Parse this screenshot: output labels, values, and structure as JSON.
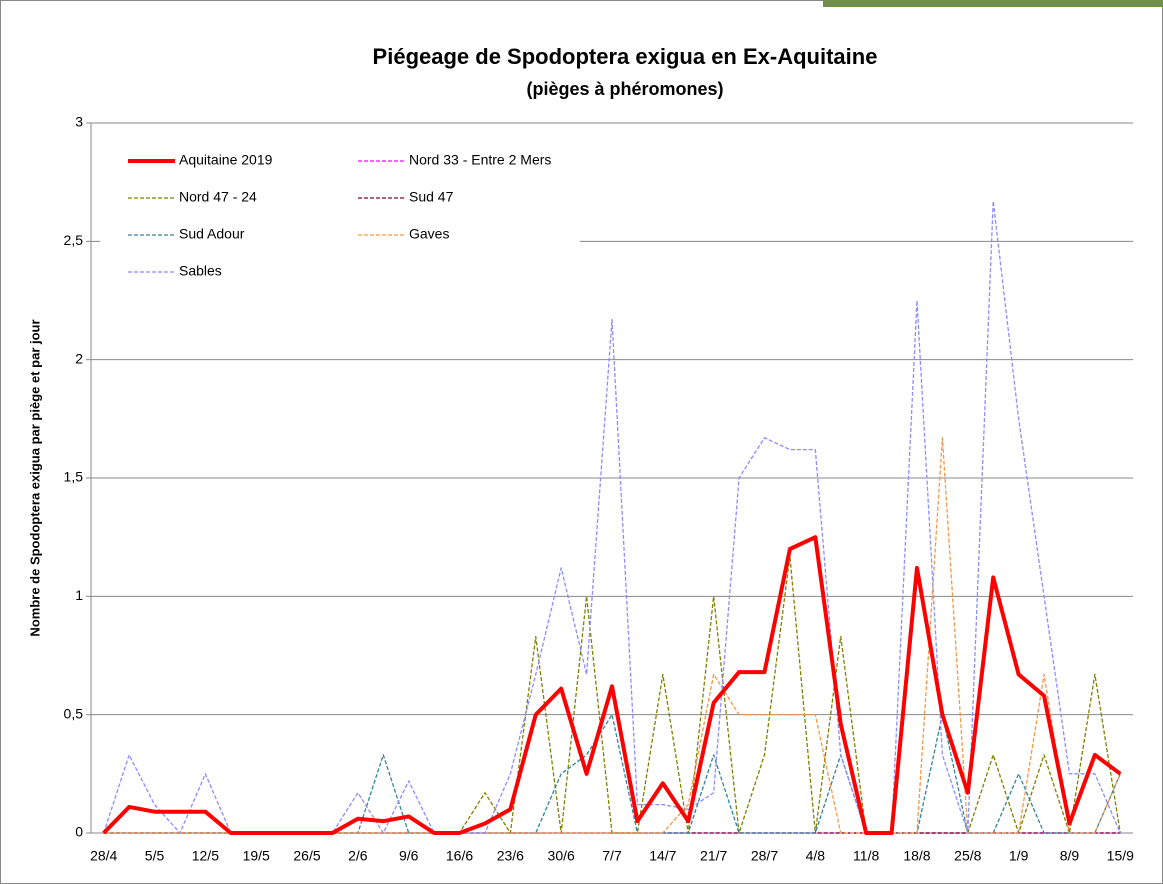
{
  "chart_data": {
    "type": "line",
    "title": "Piégeage de Spodoptera exigua en Ex-Aquitaine",
    "subtitle": "(pièges à phéromones)",
    "y_label": "Nombre de Spodoptera exigua par piège et par jour",
    "categories": [
      "28/4",
      null,
      "5/5",
      null,
      "12/5",
      null,
      "19/5",
      null,
      "26/5",
      null,
      "2/6",
      null,
      "9/6",
      null,
      "16/6",
      null,
      "23/6",
      null,
      "30/6",
      null,
      "7/7",
      null,
      "14/7",
      null,
      "21/7",
      null,
      "28/7",
      null,
      "4/8",
      null,
      "11/8",
      null,
      "18/8",
      null,
      "25/8",
      null,
      "1/9",
      null,
      "8/9",
      null,
      "15/9"
    ],
    "ylim": [
      0,
      3
    ],
    "yticks": [
      0,
      {
        "value": 0.5,
        "label": "0,5"
      },
      1,
      {
        "value": 1.5,
        "label": "1,5"
      },
      2,
      {
        "value": 2.5,
        "label": "2,5"
      },
      3
    ],
    "grid": true,
    "legend": "top-left",
    "series": [
      {
        "name": "Aquitaine 2019",
        "color": "#ff0000",
        "values": [
          0,
          0.11,
          0.09,
          0.09,
          0.09,
          0,
          0,
          0,
          0,
          0,
          0.06,
          0.05,
          0.07,
          0,
          0,
          0.04,
          0.1,
          0.5,
          0.61,
          0.25,
          0.62,
          0.05,
          0.21,
          0.05,
          0.55,
          0.68,
          0.68,
          1.2,
          1.25,
          0.46,
          0,
          0,
          1.12,
          0.5,
          0.17,
          1.08,
          0.67,
          0.58,
          0.04,
          0.33,
          0.25
        ]
      },
      {
        "name": "Nord 33 - Entre 2 Mers",
        "color": "#ff00ff",
        "values": [
          0,
          0,
          0,
          0,
          0,
          0,
          0,
          0,
          0,
          0,
          0,
          0,
          0,
          0,
          0,
          0,
          0,
          0,
          0,
          0,
          0,
          0,
          0,
          0,
          0,
          0,
          0,
          0,
          0,
          0,
          0,
          0,
          0,
          0,
          0,
          0,
          0,
          0,
          0,
          0,
          0
        ]
      },
      {
        "name": "Nord 47 - 24",
        "color": "#808000",
        "values": [
          0,
          0,
          0,
          0,
          0,
          0,
          0,
          0,
          0,
          0,
          0,
          0,
          0,
          0,
          0,
          0.17,
          0,
          0.83,
          0,
          1,
          0,
          0,
          0.67,
          0,
          1,
          0,
          0.33,
          1.17,
          0,
          0.83,
          0,
          0,
          0,
          0,
          0,
          0.33,
          0,
          0.33,
          0,
          0.67,
          0
        ]
      },
      {
        "name": "Sud 47",
        "color": "#800040",
        "values": [
          0,
          0,
          0,
          0,
          0,
          0,
          0,
          0,
          0,
          0,
          0,
          0,
          0,
          0,
          0,
          0,
          0,
          0,
          0,
          0,
          0,
          0,
          0,
          0,
          0,
          0,
          0,
          0,
          0,
          0,
          0,
          0,
          0,
          0,
          0,
          0,
          0,
          0,
          0,
          0,
          0
        ]
      },
      {
        "name": "Sud Adour",
        "color": "#31849b",
        "values": [
          0,
          0,
          0,
          0,
          0,
          0,
          0,
          0,
          0,
          0,
          0,
          0.33,
          0,
          0,
          0,
          0,
          0,
          0,
          0.25,
          0.33,
          0.5,
          0,
          0,
          0,
          0.33,
          0,
          0,
          0,
          0,
          0.33,
          0,
          0,
          0,
          0.5,
          0,
          0,
          0.25,
          0,
          0,
          0,
          0.25
        ]
      },
      {
        "name": "Gaves",
        "color": "#f79646",
        "values": [
          0,
          0,
          0,
          0,
          0,
          0,
          0,
          0,
          0,
          0,
          0,
          0,
          0,
          0,
          0,
          0,
          0,
          0,
          0,
          0,
          0,
          0,
          0,
          0.12,
          0.67,
          0.5,
          0.5,
          0.5,
          0.5,
          0,
          0,
          0,
          0,
          1.67,
          0,
          0,
          0,
          0.67,
          0,
          0,
          0.25
        ]
      },
      {
        "name": "Sables",
        "color": "#8c8cff",
        "values": [
          0,
          0.33,
          0.12,
          0,
          0.25,
          0,
          0,
          0,
          0,
          0,
          0.17,
          0,
          0.22,
          0,
          0,
          0,
          0.25,
          0.67,
          1.12,
          0.67,
          2.17,
          0.12,
          0.12,
          0.1,
          0.17,
          1.5,
          1.67,
          1.62,
          1.62,
          0.33,
          0,
          0,
          2.25,
          0.33,
          0,
          2.67,
          1.75,
          1,
          0.25,
          0.25,
          0
        ]
      }
    ]
  }
}
